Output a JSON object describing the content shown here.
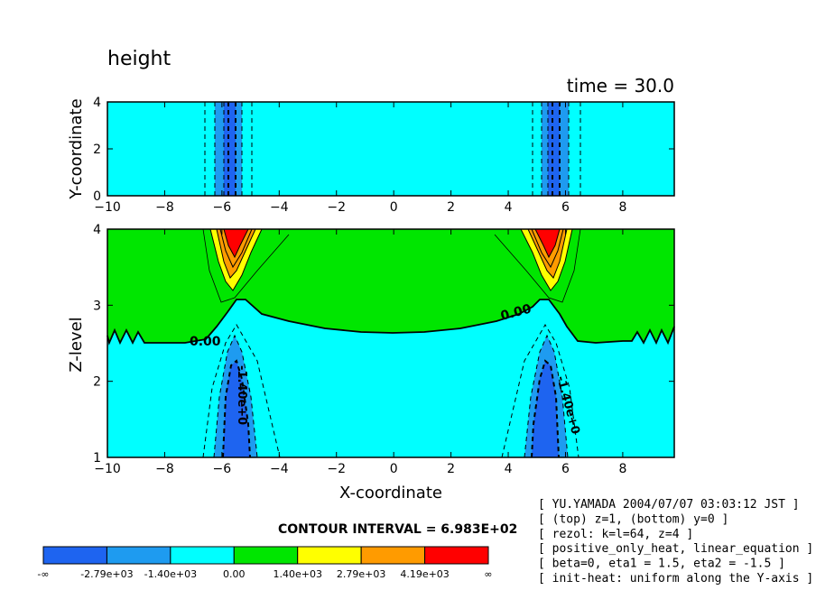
{
  "chart_data": {
    "type": "contour",
    "title": "height",
    "time_label": "time = 30.0",
    "top_panel": {
      "xlabel": "",
      "ylabel": "Y-coordinate",
      "xlim": [
        -10,
        9.8
      ],
      "ylim": [
        0,
        4
      ],
      "xticks": [
        "-10",
        "-8",
        "-6",
        "-4",
        "-2",
        "0",
        "2",
        "4",
        "6",
        "8"
      ],
      "yticks": [
        "0",
        "2",
        "4"
      ]
    },
    "bottom_panel": {
      "xlabel": "X-coordinate",
      "ylabel": "Z-level",
      "xlim": [
        -10,
        9.8
      ],
      "ylim": [
        1,
        4
      ],
      "xticks": [
        "-10",
        "-8",
        "-6",
        "-4",
        "-2",
        "0",
        "2",
        "4",
        "6",
        "8"
      ],
      "yticks": [
        "1",
        "2",
        "3",
        "4"
      ],
      "contour_labels": [
        "0.00",
        "0.00",
        "-1.40e+0",
        "-1.40e+0"
      ],
      "features": [
        {
          "name": "positive height maximum",
          "x": -5.6,
          "z": 3.9
        },
        {
          "name": "positive height maximum",
          "x": 5.6,
          "z": 3.9
        },
        {
          "name": "negative height minimum",
          "x": -5.6,
          "z": 1.7
        },
        {
          "name": "negative height minimum",
          "x": 5.6,
          "z": 1.7
        }
      ]
    },
    "contour_interval": "CONTOUR INTERVAL = 6.983E+02",
    "colorbar": {
      "labels": [
        "-∞",
        "-2.79e+03",
        "-1.40e+03",
        "0.00",
        "1.40e+03",
        "2.79e+03",
        "4.19e+03",
        "∞"
      ],
      "colors": [
        "#1e64f0",
        "#1e9bf0",
        "#00ffff",
        "#00e600",
        "#ffff00",
        "#ff9b00",
        "#ff0000"
      ]
    },
    "info_lines": [
      "[ YU.YAMADA 2004/07/07 03:03:12 JST ]",
      "[ (top) z=1, (bottom) y=0 ]",
      "[ rezol: k=l=64, z=4 ]",
      "[ positive_only_heat, linear_equation ]",
      "[ beta=0, eta1 = 1.5, eta2 = -1.5 ]",
      "[ init-heat: uniform along the Y-axis ]"
    ]
  }
}
